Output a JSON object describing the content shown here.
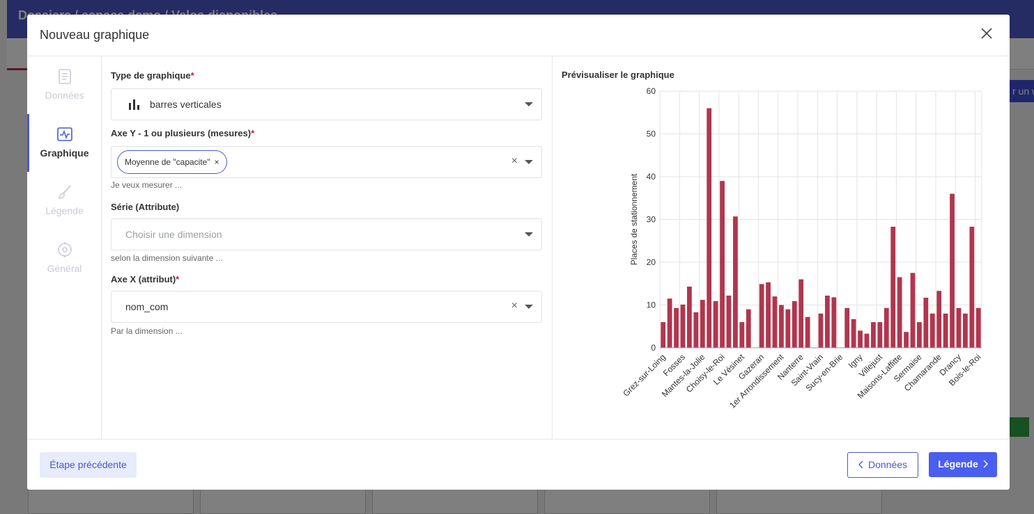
{
  "background": {
    "breadcrumb": "Dossiers / espace demo / Velos disponibles",
    "side_button": "r un w"
  },
  "modal": {
    "title": "Nouveau graphique",
    "steps": [
      {
        "label": "Données",
        "icon": "document-icon",
        "state": "inactive"
      },
      {
        "label": "Graphique",
        "icon": "chart-line-icon",
        "state": "active"
      },
      {
        "label": "Légende",
        "icon": "brush-icon",
        "state": "inactive"
      },
      {
        "label": "Général",
        "icon": "settings-icon",
        "state": "inactive"
      }
    ],
    "form": {
      "chart_type": {
        "label": "Type de graphique",
        "required_mark": "*",
        "value": "barres verticales",
        "icon": "bar-chart-icon"
      },
      "y_axis": {
        "label": "Axe Y - 1 ou plusieurs (mesures)",
        "required_mark": "*",
        "chip": "Moyenne de \"capacite\"",
        "chip_remove": "×",
        "hint": "Je veux mesurer ..."
      },
      "series": {
        "label": "Série (Attribute)",
        "placeholder": "Choisir une dimension",
        "hint": "selon la dimension suivante ..."
      },
      "x_axis": {
        "label": "Axe X (attribut)",
        "required_mark": "*",
        "value": "nom_com",
        "hint": "Par la dimension ..."
      },
      "clear_symbol": "×"
    },
    "preview_title": "Prévisualiser le graphique",
    "footer": {
      "prev_step": "Étape précédente",
      "back_button": "Données",
      "next_button": "Légende"
    }
  },
  "chart_data": {
    "type": "bar",
    "ylabel": "Places de stationnement",
    "ylim": [
      0,
      60
    ],
    "yticks": [
      0,
      10,
      20,
      30,
      40,
      50,
      60
    ],
    "bar_color": "#b0364e",
    "grid": true,
    "x_tick_labels": [
      "Grez-sur-Loing",
      "Fosses",
      "Mantes-la-Jolie",
      "Choisy-le-Roi",
      "Le Vésinet",
      "Gazeran",
      "1er Arrondissement",
      "Nanterre",
      "Saint-Vrain",
      "Sucy-en-Brie",
      "Igny",
      "Villejust",
      "Maisons-Laffitte",
      "Sermaise",
      "Chamarande",
      "Drancy",
      "Bois-le-Roi"
    ],
    "values": [
      6,
      11.5,
      9.3,
      10.1,
      14.3,
      8.3,
      11.2,
      56,
      10.9,
      39,
      12.2,
      30.7,
      6,
      9,
      0,
      14.9,
      15.3,
      12,
      10,
      9,
      10.9,
      16,
      7.2,
      0,
      8,
      12.2,
      11.8,
      0,
      9.3,
      6.7,
      4,
      3.3,
      6,
      6,
      9.3,
      28.3,
      16.5,
      3.7,
      17.5,
      6,
      11.7,
      8,
      13.3,
      8,
      36,
      9.3,
      8,
      28.3,
      9.3
    ]
  }
}
